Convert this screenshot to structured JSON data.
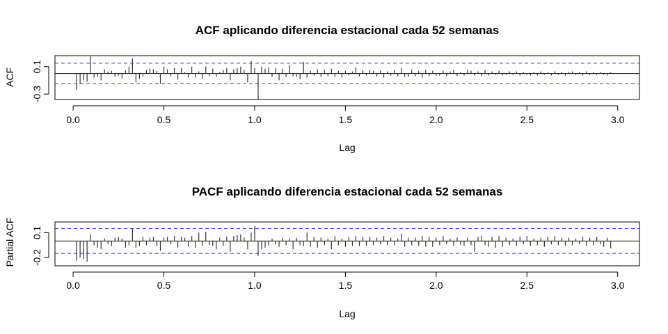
{
  "chart_data": [
    {
      "type": "bar",
      "subtype": "acf",
      "title": "ACF aplicando diferencia estacional cada 52 semanas",
      "xlabel": "Lag",
      "ylabel": "ACF",
      "xlim": [
        -0.1,
        3.12
      ],
      "ylim": [
        -0.38,
        0.26
      ],
      "xticks": [
        0.0,
        0.5,
        1.0,
        1.5,
        2.0,
        2.5,
        3.0
      ],
      "xtick_labels": [
        "0.0",
        "0.5",
        "1.0",
        "1.5",
        "2.0",
        "2.5",
        "3.0"
      ],
      "yticks": [
        -0.3,
        0.1
      ],
      "ytick_labels": [
        "-0.3",
        "0.1"
      ],
      "confidence_band": [
        -0.15,
        0.15
      ],
      "lag_step": 0.019231,
      "values": [
        -0.24,
        -0.15,
        -0.1,
        -0.12,
        0.25,
        -0.06,
        -0.05,
        -0.1,
        0.06,
        0.03,
        0.04,
        -0.05,
        -0.03,
        -0.07,
        0.05,
        0.1,
        0.22,
        -0.13,
        -0.08,
        -0.04,
        0.05,
        0.07,
        0.06,
        0.04,
        -0.15,
        0.1,
        0.06,
        -0.04,
        0.08,
        -0.09,
        0.08,
        0.02,
        -0.06,
        0.1,
        -0.06,
        0.03,
        -0.08,
        0.1,
        -0.04,
        0.07,
        -0.05,
        0.02,
        0.05,
        0.08,
        -0.1,
        0.06,
        0.08,
        0.1,
        0.05,
        -0.13,
        0.18,
        0.08,
        -0.38,
        0.1,
        0.07,
        0.09,
        -0.05,
        0.08,
        -0.1,
        0.07,
        -0.05,
        0.12,
        -0.04,
        -0.05,
        -0.08,
        0.17,
        -0.06,
        0.04,
        -0.03,
        0.06,
        -0.05,
        0.05,
        -0.04,
        0.07,
        -0.05,
        0.04,
        -0.06,
        0.04,
        -0.03,
        0.03,
        0.09,
        -0.04,
        0.05,
        -0.03,
        0.05,
        0.04,
        -0.04,
        0.04,
        -0.06,
        0.03,
        -0.03,
        0.05,
        -0.04,
        0.08,
        -0.05,
        -0.05,
        0.05,
        -0.04,
        0.04,
        -0.06,
        0.05,
        -0.04,
        0.04,
        -0.03,
        -0.03,
        0.04,
        -0.04,
        0.03,
        0.05,
        -0.04,
        0.02,
        -0.03,
        0.05,
        0.04,
        -0.03,
        0.03,
        -0.04,
        0.05,
        -0.03,
        0.03,
        -0.02,
        0.04,
        -0.03,
        -0.02,
        0.03,
        -0.02,
        0.03,
        -0.03,
        0.02,
        -0.02,
        -0.03,
        0.02,
        -0.03,
        0.03,
        -0.02,
        0.02,
        -0.03,
        0.03,
        -0.02,
        0.02,
        -0.03,
        0.02,
        0.03,
        -0.02,
        0.02,
        -0.03,
        0.03,
        -0.02,
        0.02,
        -0.02,
        0.02,
        -0.02,
        -0.03,
        0.02
      ]
    },
    {
      "type": "bar",
      "subtype": "pacf",
      "title": "PACF aplicando diferencia estacional cada 52 semanas",
      "xlabel": "Lag",
      "ylabel": "Partial ACF",
      "xlim": [
        -0.1,
        3.12
      ],
      "ylim": [
        -0.3,
        0.23
      ],
      "xticks": [
        0.0,
        0.5,
        1.0,
        1.5,
        2.0,
        2.5,
        3.0
      ],
      "xtick_labels": [
        "0.0",
        "0.5",
        "1.0",
        "1.5",
        "2.0",
        "2.5",
        "3.0"
      ],
      "yticks": [
        -0.2,
        0.1
      ],
      "ytick_labels": [
        "-0.2",
        "0.1"
      ],
      "confidence_band": [
        -0.15,
        0.15
      ],
      "lag_step": 0.019231,
      "values": [
        -0.24,
        -0.2,
        -0.22,
        -0.25,
        0.08,
        -0.05,
        -0.08,
        -0.1,
        0.03,
        -0.04,
        -0.06,
        0.04,
        0.05,
        0.03,
        -0.08,
        -0.05,
        0.15,
        -0.08,
        -0.06,
        0.05,
        -0.05,
        0.04,
        0.05,
        -0.06,
        -0.12,
        0.04,
        0.05,
        -0.04,
        0.06,
        -0.08,
        0.05,
        0.04,
        -0.07,
        0.06,
        -0.08,
        0.1,
        -0.06,
        0.11,
        -0.05,
        -0.06,
        -0.1,
        0.04,
        -0.06,
        0.05,
        -0.13,
        0.06,
        0.07,
        0.08,
        0.04,
        -0.1,
        0.1,
        0.18,
        -0.18,
        -0.1,
        -0.08,
        -0.05,
        0.03,
        -0.04,
        -0.07,
        0.04,
        -0.05,
        0.03,
        -0.1,
        0.04,
        -0.05,
        -0.06,
        0.1,
        -0.07,
        0.05,
        -0.08,
        0.04,
        -0.05,
        0.03,
        -0.1,
        0.06,
        -0.05,
        0.03,
        -0.07,
        0.05,
        -0.06,
        0.06,
        -0.06,
        0.05,
        -0.06,
        0.05,
        -0.05,
        0.04,
        -0.04,
        0.06,
        -0.05,
        0.04,
        -0.05,
        0.03,
        0.09,
        -0.07,
        0.04,
        -0.05,
        0.04,
        -0.06,
        0.06,
        -0.07,
        0.05,
        -0.07,
        0.04,
        -0.05,
        0.06,
        -0.04,
        0.03,
        -0.06,
        0.04,
        -0.05,
        -0.06,
        0.04,
        -0.05,
        -0.13,
        0.05,
        0.06,
        -0.05,
        -0.07,
        0.05,
        -0.08,
        0.06,
        -0.07,
        0.04,
        -0.05,
        0.03,
        -0.06,
        0.05,
        -0.04,
        0.06,
        -0.06,
        0.03,
        -0.05,
        0.04,
        -0.07,
        0.05,
        -0.04,
        0.06,
        -0.05,
        0.04,
        -0.06,
        0.04,
        -0.05,
        0.03,
        -0.04,
        0.05,
        -0.06,
        0.04,
        -0.05,
        0.05,
        -0.04,
        -0.07,
        0.04,
        -0.09
      ]
    }
  ]
}
